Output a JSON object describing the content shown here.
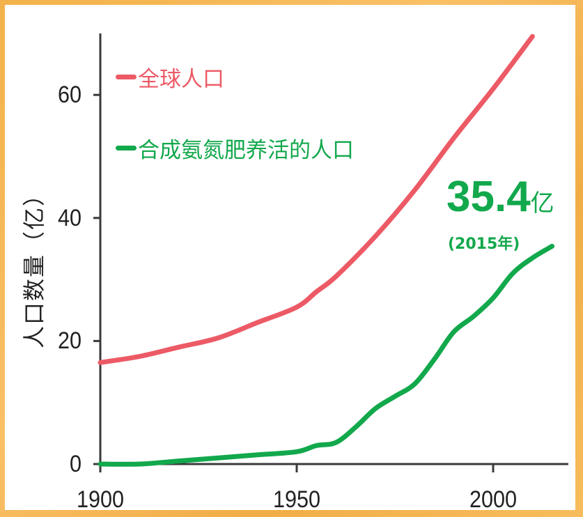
{
  "colors": {
    "global_population": "#ec5a66",
    "fertilizer_population": "#12a84c",
    "annotation": "#12a84c",
    "axis": "#3a3a3a",
    "background_frame": "#f4b24c"
  },
  "legend": {
    "items": [
      {
        "label": "全球人口",
        "color": "#ec5a66"
      },
      {
        "label": "合成氨氮肥养活的人口",
        "color": "#12a84c"
      }
    ]
  },
  "annotation": {
    "value": "35.4",
    "unit": "亿",
    "year": "(2015年)"
  },
  "axes": {
    "ylabel": "人口数量（亿）",
    "yticks": [
      "0",
      "20",
      "40",
      "60"
    ],
    "xticks": [
      "1900",
      "1950",
      "2000"
    ]
  },
  "chart_data": {
    "type": "line",
    "title": "",
    "xlabel": "",
    "ylabel": "人口数量（亿）",
    "xlim": [
      1900,
      2020
    ],
    "ylim": [
      0,
      70
    ],
    "xticks": [
      1900,
      1950,
      2000
    ],
    "yticks": [
      0,
      20,
      40,
      60
    ],
    "grid": false,
    "legend_position": "upper left",
    "series": [
      {
        "name": "全球人口",
        "color": "#ec5a66",
        "x": [
          1900,
          1910,
          1920,
          1930,
          1940,
          1950,
          1955,
          1960,
          1970,
          1980,
          1990,
          2000,
          2010
        ],
        "values": [
          16.5,
          17.5,
          19,
          20.5,
          23,
          25.5,
          28,
          30.5,
          37,
          44.5,
          53,
          61,
          69.5
        ]
      },
      {
        "name": "合成氨氮肥养活的人口",
        "color": "#12a84c",
        "x": [
          1900,
          1910,
          1920,
          1930,
          1940,
          1950,
          1955,
          1960,
          1965,
          1970,
          1975,
          1980,
          1985,
          1990,
          1995,
          2000,
          2005,
          2010,
          2015
        ],
        "values": [
          0,
          0,
          0.5,
          1,
          1.5,
          2,
          3,
          3.5,
          6,
          9,
          11,
          13,
          17,
          21.5,
          24,
          27,
          31,
          33.5,
          35.4
        ]
      }
    ],
    "annotations": [
      {
        "text": "35.4亿",
        "x": 2015,
        "y": 35.4
      },
      {
        "text": "(2015年)",
        "x": 2015,
        "y": 35.4
      }
    ]
  }
}
